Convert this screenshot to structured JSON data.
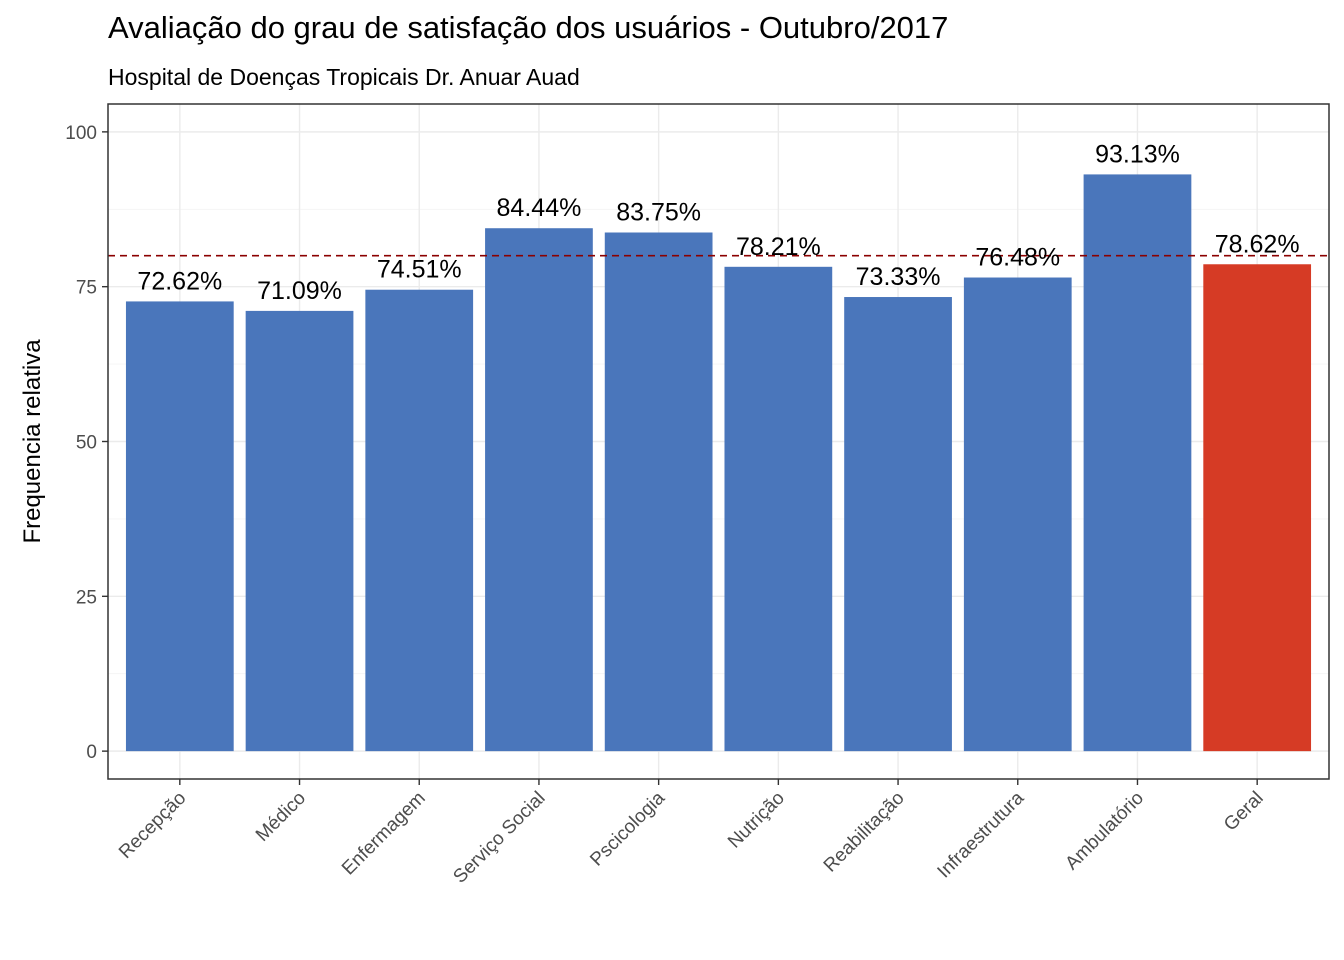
{
  "chart_data": {
    "type": "bar",
    "title": "Avaliação do grau de satisfação dos usuários - Outubro/2017",
    "subtitle": "Hospital de Doenças Tropicais Dr. Anuar Auad",
    "xlabel": "",
    "ylabel": "Frequencia relativa",
    "categories": [
      "Recepção",
      "Médico",
      "Enfermagem",
      "Serviço Social",
      "Pscicologia",
      "Nutrição",
      "Reabilitação",
      "Infraestrutura",
      "Ambulatório",
      "Geral"
    ],
    "values": [
      72.62,
      71.09,
      74.51,
      84.44,
      83.75,
      78.21,
      73.33,
      76.48,
      93.13,
      78.62
    ],
    "value_labels": [
      "72.62%",
      "71.09%",
      "74.51%",
      "84.44%",
      "83.75%",
      "78.21%",
      "73.33%",
      "76.48%",
      "93.13%",
      "78.62%"
    ],
    "ylim": [
      -4.5,
      104.5
    ],
    "yticks": [
      0,
      25,
      50,
      75,
      100
    ],
    "reference_line": {
      "value": 80,
      "style": "dashed",
      "color": "#8b0000"
    },
    "colors": {
      "default_bar": "#4a76bb",
      "highlight_bar": "#d63b25",
      "highlight_category": "Geral"
    },
    "grid": true,
    "legend": "none"
  }
}
